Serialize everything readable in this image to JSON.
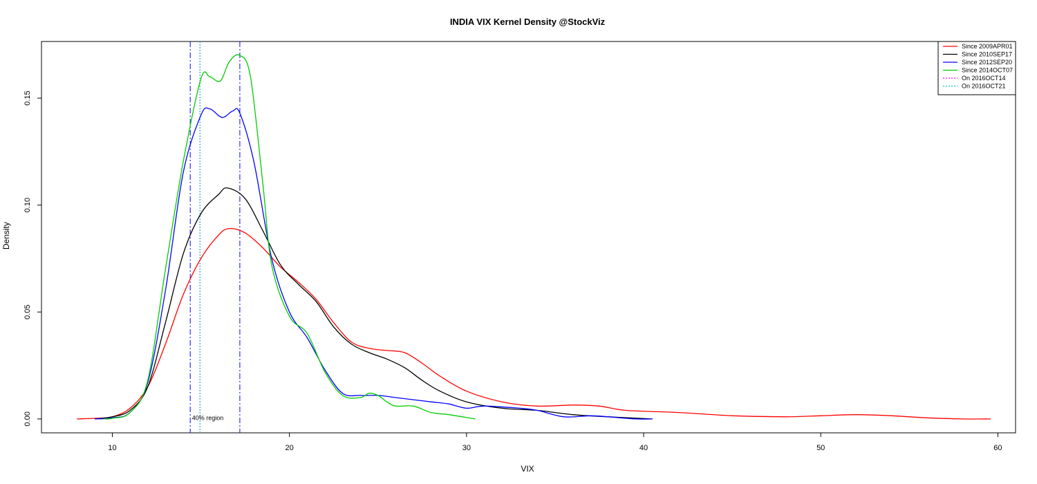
{
  "chart_data": {
    "type": "line",
    "title": "INDIA VIX Kernel Density @StockViz",
    "xlabel": "VIX",
    "ylabel": "Density",
    "xlim": [
      6,
      61
    ],
    "ylim": [
      -0.0065,
      0.1765
    ],
    "x_ticks": [
      10,
      20,
      30,
      40,
      50,
      60
    ],
    "y_ticks": [
      0.0,
      0.05,
      0.1,
      0.15
    ],
    "y_tick_labels": [
      "0.00",
      "0.05",
      "0.10",
      "0.15"
    ],
    "grid": false,
    "legend_position": "top-right",
    "series": [
      {
        "name": "Since 2009APR01",
        "color": "#ff0000",
        "points": [
          [
            8.0,
            0.0
          ],
          [
            9.0,
            0.0003
          ],
          [
            10.0,
            0.001
          ],
          [
            11.0,
            0.005
          ],
          [
            12.0,
            0.015
          ],
          [
            13.0,
            0.035
          ],
          [
            14.0,
            0.058
          ],
          [
            15.0,
            0.075
          ],
          [
            16.0,
            0.086
          ],
          [
            16.6,
            0.089
          ],
          [
            17.5,
            0.087
          ],
          [
            18.5,
            0.08
          ],
          [
            19.5,
            0.071
          ],
          [
            20.5,
            0.064
          ],
          [
            21.5,
            0.056
          ],
          [
            22.5,
            0.045
          ],
          [
            23.5,
            0.036
          ],
          [
            24.5,
            0.033
          ],
          [
            25.5,
            0.032
          ],
          [
            26.5,
            0.031
          ],
          [
            27.5,
            0.026
          ],
          [
            28.5,
            0.02
          ],
          [
            30.0,
            0.013
          ],
          [
            32.0,
            0.008
          ],
          [
            34.0,
            0.006
          ],
          [
            36.0,
            0.0065
          ],
          [
            37.5,
            0.006
          ],
          [
            39.0,
            0.004
          ],
          [
            42.0,
            0.003
          ],
          [
            45.0,
            0.0015
          ],
          [
            48.0,
            0.001
          ],
          [
            50.0,
            0.0015
          ],
          [
            52.0,
            0.002
          ],
          [
            54.0,
            0.0015
          ],
          [
            56.0,
            0.0005
          ],
          [
            58.0,
            0.0
          ],
          [
            59.6,
            0.0
          ]
        ]
      },
      {
        "name": "Since 2010SEP17",
        "color": "#000000",
        "points": [
          [
            9.0,
            0.0
          ],
          [
            10.0,
            0.001
          ],
          [
            11.0,
            0.004
          ],
          [
            12.0,
            0.015
          ],
          [
            13.0,
            0.045
          ],
          [
            14.0,
            0.077
          ],
          [
            15.0,
            0.096
          ],
          [
            16.0,
            0.105
          ],
          [
            16.5,
            0.108
          ],
          [
            17.5,
            0.103
          ],
          [
            18.5,
            0.088
          ],
          [
            19.5,
            0.072
          ],
          [
            20.5,
            0.063
          ],
          [
            21.5,
            0.055
          ],
          [
            22.5,
            0.043
          ],
          [
            23.5,
            0.035
          ],
          [
            24.5,
            0.031
          ],
          [
            25.5,
            0.028
          ],
          [
            26.5,
            0.024
          ],
          [
            27.5,
            0.018
          ],
          [
            28.5,
            0.013
          ],
          [
            30.0,
            0.008
          ],
          [
            32.0,
            0.005
          ],
          [
            34.0,
            0.004
          ],
          [
            36.0,
            0.002
          ],
          [
            38.0,
            0.001
          ],
          [
            40.5,
            0.0
          ]
        ]
      },
      {
        "name": "Since 2012SEP20",
        "color": "#0000ff",
        "points": [
          [
            9.0,
            0.0
          ],
          [
            10.0,
            0.0005
          ],
          [
            11.0,
            0.003
          ],
          [
            12.0,
            0.017
          ],
          [
            13.0,
            0.06
          ],
          [
            14.0,
            0.115
          ],
          [
            15.0,
            0.142
          ],
          [
            15.5,
            0.145
          ],
          [
            16.2,
            0.141
          ],
          [
            16.8,
            0.144
          ],
          [
            17.2,
            0.143
          ],
          [
            18.0,
            0.12
          ],
          [
            19.0,
            0.075
          ],
          [
            20.0,
            0.05
          ],
          [
            21.0,
            0.038
          ],
          [
            22.0,
            0.023
          ],
          [
            23.0,
            0.012
          ],
          [
            24.0,
            0.011
          ],
          [
            25.0,
            0.011
          ],
          [
            26.0,
            0.01
          ],
          [
            27.0,
            0.009
          ],
          [
            28.0,
            0.008
          ],
          [
            29.0,
            0.007
          ],
          [
            30.0,
            0.005
          ],
          [
            31.0,
            0.006
          ],
          [
            33.0,
            0.005
          ],
          [
            34.0,
            0.004
          ],
          [
            35.5,
            0.001
          ],
          [
            37.0,
            0.0015
          ],
          [
            38.0,
            0.001
          ],
          [
            39.5,
            0.0
          ],
          [
            40.5,
            0.0
          ]
        ]
      },
      {
        "name": "Since 2014OCT07",
        "color": "#00cc00",
        "points": [
          [
            9.5,
            0.0
          ],
          [
            10.0,
            0.0003
          ],
          [
            11.0,
            0.003
          ],
          [
            12.0,
            0.018
          ],
          [
            13.0,
            0.07
          ],
          [
            14.0,
            0.12
          ],
          [
            15.0,
            0.159
          ],
          [
            15.5,
            0.16
          ],
          [
            16.1,
            0.158
          ],
          [
            16.6,
            0.167
          ],
          [
            17.2,
            0.17
          ],
          [
            17.8,
            0.16
          ],
          [
            18.5,
            0.11
          ],
          [
            19.0,
            0.072
          ],
          [
            20.0,
            0.048
          ],
          [
            21.0,
            0.04
          ],
          [
            22.0,
            0.022
          ],
          [
            23.0,
            0.011
          ],
          [
            24.0,
            0.01
          ],
          [
            24.5,
            0.012
          ],
          [
            25.0,
            0.011
          ],
          [
            25.5,
            0.008
          ],
          [
            26.0,
            0.006
          ],
          [
            27.0,
            0.006
          ],
          [
            28.0,
            0.003
          ],
          [
            29.0,
            0.002
          ],
          [
            30.5,
            0.0
          ]
        ]
      }
    ],
    "vertical_lines": [
      {
        "name": "On 2016OCT14",
        "x": 14.95,
        "color": "#ff00ff",
        "style": "dotted"
      },
      {
        "name": "On 2016OCT21",
        "x": 14.95,
        "color": "#00cccc",
        "style": "dotted"
      },
      {
        "name": "40% region lower bound",
        "x": 14.4,
        "color": "#0000ff",
        "style": "dashdot"
      },
      {
        "name": "40% region upper bound",
        "x": 17.2,
        "color": "#0000ff",
        "style": "dashdot"
      }
    ],
    "annotations": [
      {
        "text": "40% region",
        "x": 14.5,
        "y": -0.0005
      }
    ],
    "legend": [
      {
        "label": "Since 2009APR01",
        "color": "#ff0000",
        "style": "solid"
      },
      {
        "label": "Since 2010SEP17",
        "color": "#000000",
        "style": "solid"
      },
      {
        "label": "Since 2012SEP20",
        "color": "#0000ff",
        "style": "solid"
      },
      {
        "label": "Since 2014OCT07",
        "color": "#00cc00",
        "style": "solid"
      },
      {
        "label": "On 2016OCT14",
        "color": "#ff00ff",
        "style": "dotted"
      },
      {
        "label": "On 2016OCT21",
        "color": "#00cccc",
        "style": "dotted"
      }
    ]
  }
}
